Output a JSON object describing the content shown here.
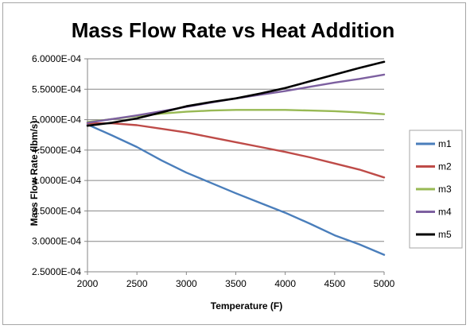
{
  "chart_data": {
    "type": "line",
    "title": "Mass Flow Rate vs Heat Addition",
    "xlabel": "Temperature (F)",
    "ylabel": "Mass Flow Rate (lbm/s)",
    "xlim": [
      2000,
      5000
    ],
    "ylim": [
      0.00025,
      0.0006
    ],
    "x_ticks": [
      "2000",
      "2500",
      "3000",
      "3500",
      "4000",
      "4500",
      "5000"
    ],
    "y_ticks": [
      "2.5000E-04",
      "3.0000E-04",
      "3.5000E-04",
      "4.0000E-04",
      "4.5000E-04",
      "5.0000E-04",
      "5.5000E-04",
      "6.0000E-04"
    ],
    "grid": "horizontal",
    "legend_position": "right",
    "x": [
      2000,
      2250,
      2500,
      2750,
      3000,
      3250,
      3500,
      3750,
      4000,
      4250,
      4500,
      4750,
      5000
    ],
    "series": [
      {
        "name": "m1",
        "color": "#4a7ebb",
        "values": [
          0.000492,
          0.000474,
          0.000455,
          0.000433,
          0.000413,
          0.000396,
          0.000379,
          0.000363,
          0.000347,
          0.000329,
          0.00031,
          0.000295,
          0.000278
        ]
      },
      {
        "name": "m2",
        "color": "#be4b48",
        "values": [
          0.000494,
          0.000494,
          0.000491,
          0.000485,
          0.000479,
          0.000471,
          0.000463,
          0.000455,
          0.000447,
          0.000438,
          0.000428,
          0.000418,
          0.000405
        ]
      },
      {
        "name": "m3",
        "color": "#98b954",
        "values": [
          0.000496,
          0.000501,
          0.000506,
          0.00051,
          0.000513,
          0.000515,
          0.000516,
          0.000516,
          0.000516,
          0.000515,
          0.000514,
          0.000512,
          0.000509
        ]
      },
      {
        "name": "m4",
        "color": "#7d60a0",
        "values": [
          0.000495,
          0.000501,
          0.000507,
          0.000514,
          0.000521,
          0.000528,
          0.000535,
          0.000541,
          0.000547,
          0.000554,
          0.000561,
          0.000567,
          0.000574
        ]
      },
      {
        "name": "m5",
        "color": "#000000",
        "values": [
          0.00049,
          0.000495,
          0.000502,
          0.000512,
          0.000522,
          0.000529,
          0.000535,
          0.000543,
          0.000552,
          0.000563,
          0.000574,
          0.000585,
          0.000595
        ]
      }
    ]
  }
}
